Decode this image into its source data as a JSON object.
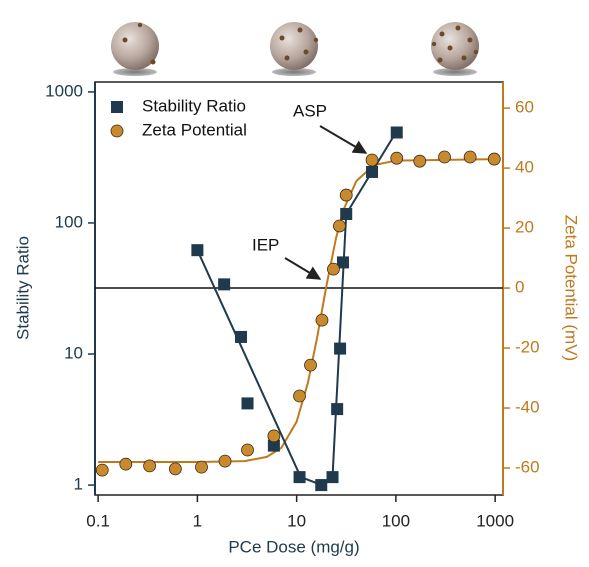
{
  "chart_data": {
    "type": "scatter",
    "xlabel": "PCe Dose (mg/g)",
    "ylabel": "Stability Ratio",
    "y2label": "Zeta Potential (mV)",
    "xscale": "log",
    "yscale": "log",
    "xlim": [
      0.093,
      1200
    ],
    "ylim": [
      0.84,
      1190
    ],
    "y2lim": [
      -69,
      68.7
    ],
    "xticks": [
      0.1,
      1,
      10,
      100,
      1000
    ],
    "yticks": [
      1,
      10,
      100,
      1000
    ],
    "y2ticks": [
      -60,
      -40,
      -20,
      0,
      20,
      40,
      60
    ],
    "hline": {
      "axis": "y2",
      "value": 0
    },
    "legend": "upper left",
    "annotations": [
      {
        "text": "ASP"
      },
      {
        "text": "IEP"
      }
    ],
    "series": [
      {
        "name": "Stability Ratio",
        "color": "#1e3a4c",
        "marker": "square",
        "x": [
          1,
          1.86,
          2.75,
          3.2,
          5.9,
          10.7,
          17.7,
          23,
          25.6,
          27.4,
          29.3,
          31.6,
          57.5,
          102
        ],
        "values": [
          62,
          34,
          13.5,
          4.2,
          2.0,
          1.15,
          1.0,
          1.15,
          3.8,
          11,
          50,
          117,
          245,
          490
        ]
      },
      {
        "name": "Zeta Potential",
        "color": "#c98a2e",
        "marker": "circle",
        "axis": "y2",
        "x": [
          0.11,
          0.19,
          0.33,
          0.6,
          1.1,
          1.9,
          3.2,
          5.9,
          10.7,
          13.8,
          18,
          23.5,
          27,
          31.6,
          57.5,
          102,
          174,
          309,
          560,
          980
        ],
        "values": [
          -60.7,
          -58.7,
          -59.3,
          -60.3,
          -59.7,
          -57.7,
          -54,
          -49.3,
          -36,
          -25.7,
          -10.7,
          6.3,
          20.7,
          31,
          42.7,
          43.3,
          42.3,
          43.7,
          43.7,
          43
        ]
      },
      {
        "color": "#c07a1e",
        "marker": "none",
        "axis": "y2",
        "x": [
          0.1,
          1,
          3,
          5,
          7,
          10,
          13,
          16,
          20,
          25,
          30,
          40,
          60,
          100,
          1000
        ],
        "values": [
          -58,
          -58,
          -57.7,
          -56.3,
          -53.3,
          -44.6,
          -31.6,
          -16.9,
          0.9,
          16.8,
          26.5,
          35.7,
          41,
          42.5,
          43
        ]
      },
      {
        "color": "#1e3a4c",
        "marker": "none",
        "x": [
          1,
          11,
          18,
          23,
          31.6,
          100
        ],
        "values": [
          62,
          1.15,
          1.0,
          1.15,
          117,
          490
        ]
      }
    ]
  }
}
